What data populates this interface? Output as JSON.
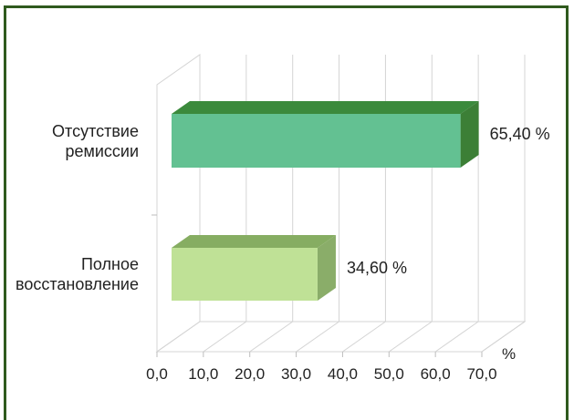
{
  "chart_data": {
    "type": "bar",
    "orientation": "horizontal",
    "style": "3d",
    "categories": [
      "Отсутствие ремиссии",
      "Полное восстановление"
    ],
    "category_lines": [
      [
        "Отсутствие",
        "ремиссии"
      ],
      [
        "Полное",
        "восстановление"
      ]
    ],
    "values": [
      65.4,
      34.6
    ],
    "data_labels": [
      "65,40 %",
      "34,60 %"
    ],
    "bar_colors": [
      {
        "front": "#63c192",
        "top": "#3b8a3c",
        "side": "#3c7f36"
      },
      {
        "front": "#bfe196",
        "top": "#86ad62",
        "side": "#8aad69"
      }
    ],
    "xlim": [
      0,
      70
    ],
    "x_ticks": [
      "0,0",
      "10,0",
      "20,0",
      "30,0",
      "40,0",
      "50,0",
      "60,0",
      "70,0"
    ],
    "xlabel": "%",
    "grid": true,
    "legend": "none",
    "frame_color": "#2f5a1e"
  }
}
